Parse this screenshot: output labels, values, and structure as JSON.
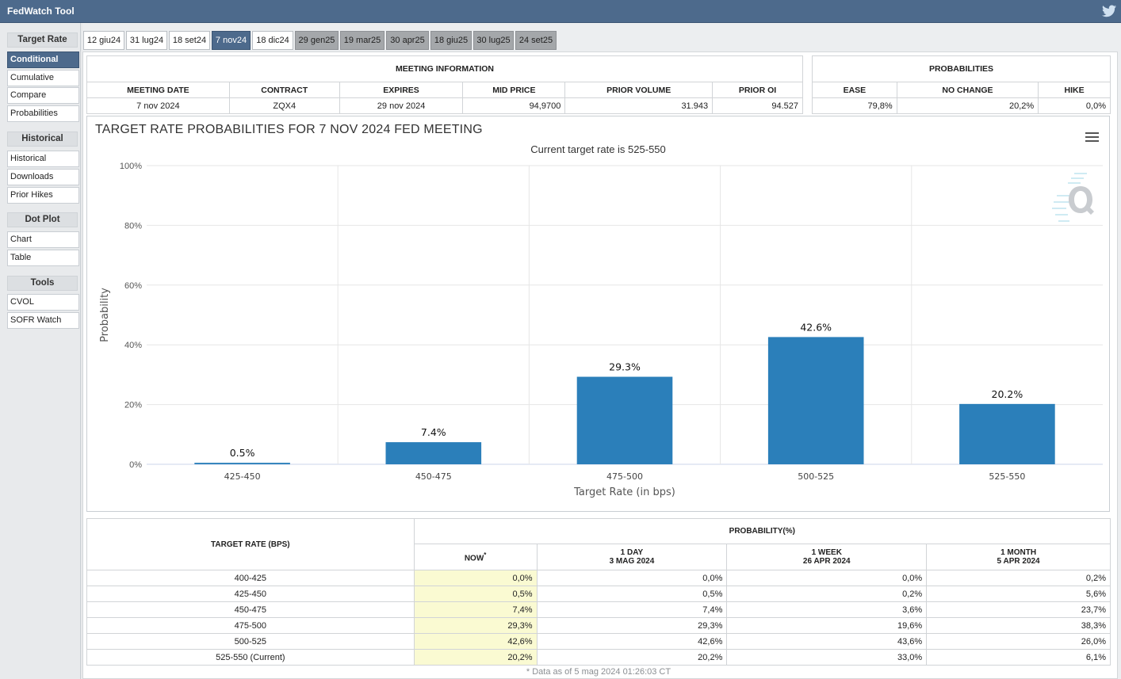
{
  "app": {
    "title": "FedWatch Tool"
  },
  "sidebar": {
    "sections": [
      {
        "heading": "Target Rate",
        "items": [
          "Conditional",
          "Cumulative",
          "Compare",
          "Probabilities"
        ]
      },
      {
        "heading": "Historical",
        "items": [
          "Historical",
          "Downloads",
          "Prior Hikes"
        ]
      },
      {
        "heading": "Dot Plot",
        "items": [
          "Chart",
          "Table"
        ]
      },
      {
        "heading": "Tools",
        "items": [
          "CVOL",
          "SOFR Watch"
        ]
      }
    ],
    "active": "Conditional"
  },
  "tabs": [
    "12 giu24",
    "31 lug24",
    "18 set24",
    "7 nov24",
    "18 dic24",
    "29 gen25",
    "19 mar25",
    "30 apr25",
    "18 giu25",
    "30 lug25",
    "24 set25"
  ],
  "active_tab": "7 nov24",
  "meeting_info": {
    "heading": "MEETING INFORMATION",
    "columns": [
      "MEETING DATE",
      "CONTRACT",
      "EXPIRES",
      "MID PRICE",
      "PRIOR VOLUME",
      "PRIOR OI"
    ],
    "values": [
      "7 nov 2024",
      "ZQX4",
      "29 nov 2024",
      "94,9700",
      "31.943",
      "94.527"
    ]
  },
  "probabilities": {
    "heading": "PROBABILITIES",
    "columns": [
      "EASE",
      "NO CHANGE",
      "HIKE"
    ],
    "values": [
      "79,8%",
      "20,2%",
      "0,0%"
    ]
  },
  "chart_data": {
    "type": "bar",
    "title": "TARGET RATE PROBABILITIES FOR 7 NOV 2024 FED MEETING",
    "subtitle": "Current target rate is 525-550",
    "xlabel": "Target Rate (in bps)",
    "ylabel": "Probability",
    "categories": [
      "425-450",
      "450-475",
      "475-500",
      "500-525",
      "525-550"
    ],
    "values": [
      0.5,
      7.4,
      29.3,
      42.6,
      20.2
    ],
    "data_labels": [
      "0.5%",
      "7.4%",
      "29.3%",
      "42.6%",
      "20.2%"
    ],
    "yticks": [
      "0%",
      "20%",
      "40%",
      "60%",
      "80%",
      "100%"
    ],
    "ylim": [
      0,
      100
    ],
    "grid": true,
    "bar_color": "#2b7fba"
  },
  "prob_table": {
    "rate_header": "TARGET RATE (BPS)",
    "group_header": "PROBABILITY(%)",
    "now_label": "NOW",
    "now_mark": "*",
    "day_label": "1 DAY",
    "day_date": "3 MAG 2024",
    "week_label": "1 WEEK",
    "week_date": "26 APR 2024",
    "month_label": "1 MONTH",
    "month_date": "5 APR 2024",
    "rows": [
      {
        "rate": "400-425",
        "now": "0,0%",
        "day": "0,0%",
        "week": "0,0%",
        "month": "0,2%"
      },
      {
        "rate": "425-450",
        "now": "0,5%",
        "day": "0,5%",
        "week": "0,2%",
        "month": "5,6%"
      },
      {
        "rate": "450-475",
        "now": "7,4%",
        "day": "7,4%",
        "week": "3,6%",
        "month": "23,7%"
      },
      {
        "rate": "475-500",
        "now": "29,3%",
        "day": "29,3%",
        "week": "19,6%",
        "month": "38,3%"
      },
      {
        "rate": "500-525",
        "now": "42,6%",
        "day": "42,6%",
        "week": "43,6%",
        "month": "26,0%"
      },
      {
        "rate": "525-550 (Current)",
        "now": "20,2%",
        "day": "20,2%",
        "week": "33,0%",
        "month": "6,1%"
      }
    ],
    "footnote": "* Data as of 5 mag 2024 01:26:03 CT"
  }
}
